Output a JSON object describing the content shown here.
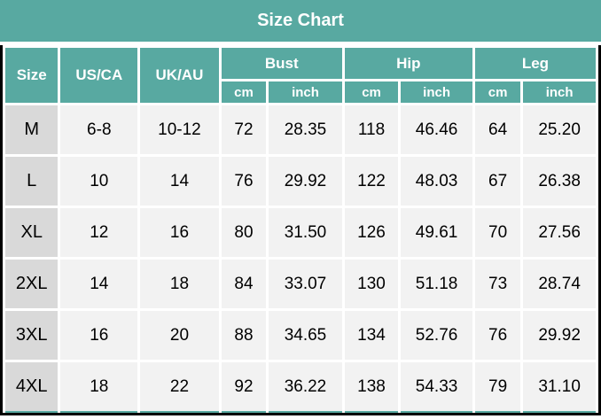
{
  "colors": {
    "header_bg": "#58a9a1",
    "header_text": "#ffffff",
    "size_column_bg": "#d9d9d9",
    "cell_bg": "#f2f2f2",
    "row_separator": "#ffffff",
    "outer_border": "#000000",
    "data_text": "#000000"
  },
  "chart_data": {
    "type": "table",
    "title": "Size Chart",
    "header": {
      "simple_columns": [
        "Size",
        "US/CA",
        "UK/AU"
      ],
      "grouped_columns": [
        {
          "label": "Bust",
          "sub": [
            "cm",
            "inch"
          ]
        },
        {
          "label": "Hip",
          "sub": [
            "cm",
            "inch"
          ]
        },
        {
          "label": "Leg",
          "sub": [
            "cm",
            "inch"
          ]
        }
      ]
    },
    "row_cell_keys": [
      "size",
      "us_ca",
      "uk_au",
      "bust_cm",
      "bust_inch",
      "hip_cm",
      "hip_inch",
      "leg_cm",
      "leg_inch"
    ],
    "rows": [
      [
        "M",
        "6-8",
        "10-12",
        "72",
        "28.35",
        "118",
        "46.46",
        "64",
        "25.20"
      ],
      [
        "L",
        "10",
        "14",
        "76",
        "29.92",
        "122",
        "48.03",
        "67",
        "26.38"
      ],
      [
        "XL",
        "12",
        "16",
        "80",
        "31.50",
        "126",
        "49.61",
        "70",
        "27.56"
      ],
      [
        "2XL",
        "14",
        "18",
        "84",
        "33.07",
        "130",
        "51.18",
        "73",
        "28.74"
      ],
      [
        "3XL",
        "16",
        "20",
        "88",
        "34.65",
        "134",
        "52.76",
        "76",
        "29.92"
      ],
      [
        "4XL",
        "18",
        "22",
        "92",
        "36.22",
        "138",
        "54.33",
        "79",
        "31.10"
      ]
    ]
  }
}
